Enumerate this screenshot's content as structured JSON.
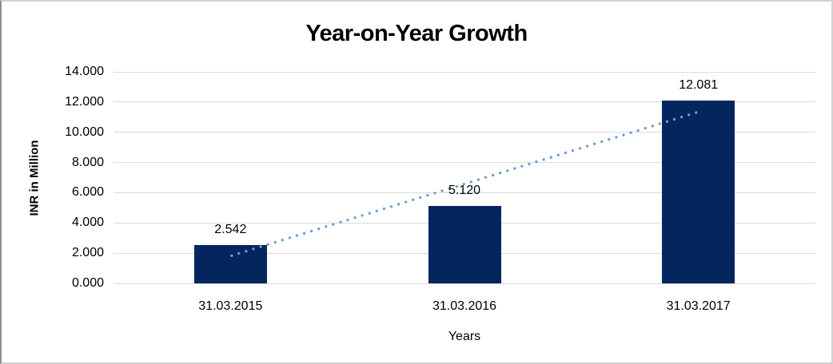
{
  "frame": {
    "background": "#ffffff",
    "border_color": "#d2d2d2",
    "left_edge_color": "#8f8f8f"
  },
  "chart_data": {
    "type": "bar",
    "title": "Year-on-Year Growth",
    "categories": [
      "31.03.2015",
      "31.03.2016",
      "31.03.2017"
    ],
    "values": [
      2.542,
      5.12,
      12.081
    ],
    "value_labels": [
      "2.542",
      "5.120",
      "12.081"
    ],
    "xlabel": "Years",
    "ylabel": "INR in Million",
    "ylim": [
      0,
      14
    ],
    "ytick_step": 2,
    "ytick_labels": [
      "0.000",
      "2.000",
      "4.000",
      "6.000",
      "8.000",
      "10.000",
      "12.000",
      "14.000"
    ],
    "grid": true,
    "legend_position": "none",
    "bar_color": "#05255E",
    "gridline_color": "#d9d9d9",
    "text_color": "#000000",
    "trendline": {
      "type": "linear",
      "style": "dotted",
      "color": "#6E9BD2",
      "start_value": 1.81,
      "end_value": 11.35
    }
  }
}
